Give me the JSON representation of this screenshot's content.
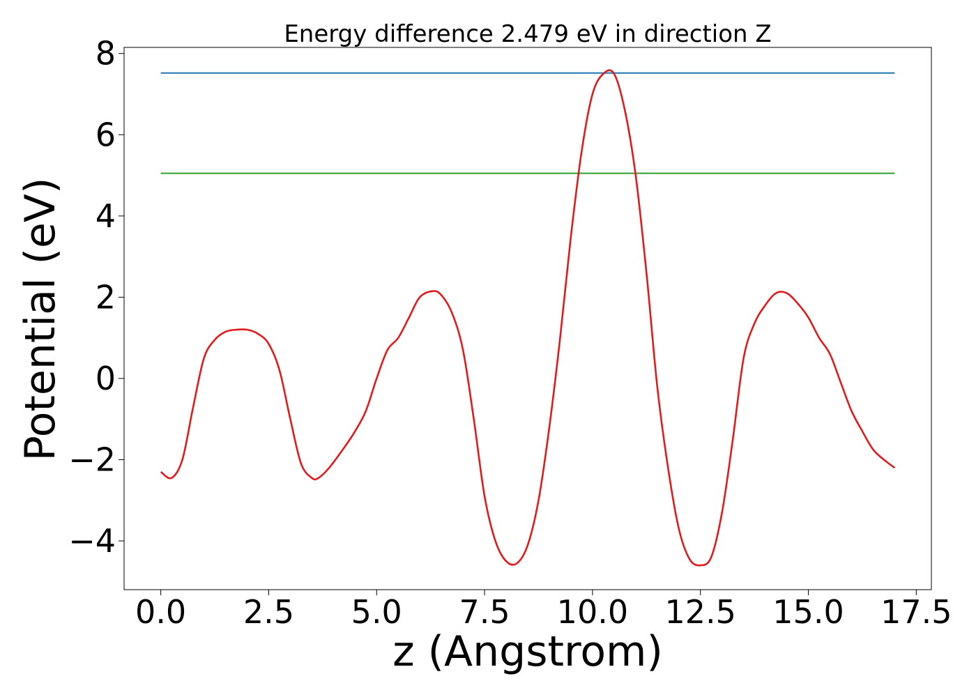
{
  "chart_data": {
    "type": "line",
    "title": "Energy difference 2.479 eV in direction Z",
    "xlabel": "z (Angstrom)",
    "ylabel": "Potential (eV)",
    "xlim": [
      -0.85,
      17.85
    ],
    "ylim": [
      -5.2,
      8.15
    ],
    "xticks": [
      0.0,
      2.5,
      5.0,
      7.5,
      10.0,
      12.5,
      15.0,
      17.5
    ],
    "xtick_labels": [
      "0.0",
      "2.5",
      "5.0",
      "7.5",
      "10.0",
      "12.5",
      "15.0",
      "17.5"
    ],
    "yticks": [
      -4,
      -2,
      0,
      2,
      4,
      6,
      8
    ],
    "ytick_labels": [
      "−4",
      "−2",
      "0",
      "2",
      "4",
      "6",
      "8"
    ],
    "grid": false,
    "series": [
      {
        "color": "#1f77b4",
        "x": [
          0.0,
          17.0
        ],
        "y": [
          7.52,
          7.52
        ]
      },
      {
        "color": "#2ca02c",
        "x": [
          0.0,
          17.0
        ],
        "y": [
          5.05,
          5.05
        ]
      },
      {
        "color": "#e31a1c",
        "x": [
          0.0,
          0.25,
          0.5,
          0.75,
          1.0,
          1.25,
          1.5,
          1.75,
          2.0,
          2.25,
          2.5,
          2.75,
          3.0,
          3.25,
          3.5,
          3.65,
          3.9,
          4.25,
          4.5,
          4.75,
          5.0,
          5.25,
          5.5,
          5.75,
          6.0,
          6.3,
          6.5,
          6.75,
          7.0,
          7.25,
          7.5,
          7.75,
          8.0,
          8.25,
          8.5,
          8.75,
          9.0,
          9.25,
          9.5,
          9.75,
          10.0,
          10.25,
          10.5,
          10.75,
          11.0,
          11.25,
          11.5,
          11.75,
          12.0,
          12.25,
          12.5,
          12.75,
          13.0,
          13.25,
          13.5,
          13.75,
          14.0,
          14.25,
          14.5,
          14.75,
          15.0,
          15.25,
          15.5,
          15.75,
          16.0,
          16.25,
          16.5,
          16.75,
          17.0
        ],
        "y": [
          -2.3,
          -2.45,
          -2.0,
          -0.7,
          0.5,
          0.95,
          1.15,
          1.2,
          1.2,
          1.1,
          0.85,
          0.2,
          -1.0,
          -2.1,
          -2.45,
          -2.45,
          -2.2,
          -1.7,
          -1.3,
          -0.8,
          0.0,
          0.7,
          1.0,
          1.5,
          2.0,
          2.15,
          2.05,
          1.6,
          0.7,
          -1.0,
          -2.9,
          -4.0,
          -4.5,
          -4.55,
          -4.1,
          -3.0,
          -1.2,
          1.0,
          3.5,
          5.6,
          7.0,
          7.5,
          7.5,
          6.6,
          5.0,
          2.6,
          -0.2,
          -2.2,
          -3.7,
          -4.45,
          -4.6,
          -4.4,
          -3.3,
          -1.5,
          0.5,
          1.35,
          1.8,
          2.1,
          2.1,
          1.85,
          1.5,
          1.0,
          0.6,
          -0.1,
          -0.8,
          -1.3,
          -1.75,
          -2.0,
          -2.2
        ]
      }
    ]
  }
}
